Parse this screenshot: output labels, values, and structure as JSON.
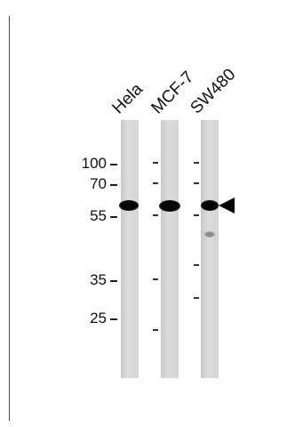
{
  "lanes": [
    {
      "label": "Hela"
    },
    {
      "label": "MCF-7"
    },
    {
      "label": "SW480"
    }
  ],
  "markers": [
    "100",
    "70",
    "55",
    "35",
    "25"
  ],
  "colors": {
    "band": "#050505",
    "lane": "#d4d4d4",
    "arrow": "#000000"
  },
  "icons": {
    "indicator": "left-triangle-arrow-icon"
  }
}
